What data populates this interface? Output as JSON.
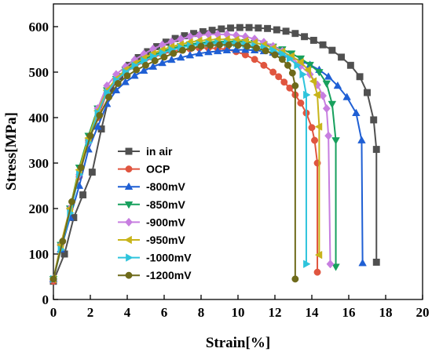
{
  "chart_data": {
    "type": "line",
    "xlabel": "Strain[%]",
    "ylabel": "Stress[MPa]",
    "xlim": [
      0,
      20
    ],
    "ylim": [
      0,
      650
    ],
    "xticks": [
      0,
      2,
      4,
      6,
      8,
      10,
      12,
      14,
      16,
      18,
      20
    ],
    "yticks": [
      0,
      100,
      200,
      300,
      400,
      500,
      600
    ],
    "grid": false,
    "legend_position": "left",
    "series": [
      {
        "name": "in air",
        "color": "#505050",
        "marker": "square",
        "x": [
          0,
          0.6,
          1.1,
          1.6,
          2.1,
          2.6,
          3.1,
          3.6,
          4.1,
          4.6,
          5.1,
          5.6,
          6.1,
          6.6,
          7.1,
          7.6,
          8.1,
          8.6,
          9.1,
          9.6,
          10.1,
          10.6,
          11.1,
          11.6,
          12.1,
          12.6,
          13.1,
          13.6,
          14.1,
          14.6,
          15.1,
          15.6,
          16.1,
          16.6,
          17.0,
          17.35,
          17.5,
          17.5
        ],
        "y": [
          40,
          100,
          180,
          230,
          280,
          375,
          460,
          490,
          515,
          532,
          545,
          556,
          566,
          574,
          580,
          585,
          589,
          592,
          595,
          597,
          598,
          598,
          597,
          596,
          593,
          590,
          585,
          578,
          570,
          560,
          548,
          533,
          515,
          490,
          455,
          395,
          330,
          82
        ]
      },
      {
        "name": "OCP",
        "color": "#e0553f",
        "marker": "circle",
        "x": [
          0,
          0.4,
          0.9,
          1.4,
          1.9,
          2.4,
          2.9,
          3.4,
          3.9,
          4.4,
          4.9,
          5.4,
          5.9,
          6.4,
          6.9,
          7.4,
          7.9,
          8.4,
          8.9,
          9.4,
          9.9,
          10.4,
          10.9,
          11.4,
          11.9,
          12.2,
          12.5,
          12.8,
          13.1,
          13.4,
          13.7,
          14.0,
          14.15,
          14.3,
          14.3
        ],
        "y": [
          40,
          120,
          200,
          270,
          350,
          400,
          455,
          480,
          500,
          512,
          523,
          532,
          540,
          545,
          549,
          551,
          553,
          553,
          552,
          550,
          545,
          538,
          528,
          515,
          500,
          490,
          478,
          465,
          450,
          432,
          410,
          378,
          350,
          300,
          60
        ]
      },
      {
        "name": "-800mV",
        "color": "#1f5fd4",
        "marker": "triangle-up",
        "x": [
          0,
          0.4,
          0.9,
          1.4,
          1.9,
          2.4,
          2.9,
          3.4,
          3.9,
          4.4,
          4.9,
          5.4,
          5.9,
          6.4,
          6.9,
          7.4,
          7.9,
          8.4,
          8.9,
          9.4,
          9.9,
          10.4,
          10.9,
          11.4,
          11.9,
          12.4,
          12.9,
          13.4,
          13.9,
          14.4,
          14.9,
          15.4,
          15.9,
          16.4,
          16.7,
          16.75
        ],
        "y": [
          45,
          110,
          180,
          250,
          330,
          380,
          430,
          460,
          478,
          492,
          503,
          512,
          520,
          527,
          532,
          537,
          541,
          544,
          546,
          548,
          549,
          549,
          548,
          546,
          543,
          538,
          532,
          525,
          516,
          505,
          490,
          470,
          445,
          410,
          350,
          80
        ]
      },
      {
        "name": "-850mV",
        "color": "#17a05d",
        "marker": "triangle-down",
        "x": [
          0,
          0.4,
          0.9,
          1.4,
          1.9,
          2.4,
          2.9,
          3.4,
          3.9,
          4.4,
          4.9,
          5.4,
          5.9,
          6.4,
          6.9,
          7.4,
          7.9,
          8.4,
          8.9,
          9.4,
          9.9,
          10.4,
          10.9,
          11.4,
          11.9,
          12.4,
          12.9,
          13.4,
          13.9,
          14.4,
          14.8,
          15.1,
          15.3,
          15.3
        ],
        "y": [
          45,
          120,
          200,
          290,
          360,
          420,
          460,
          485,
          505,
          518,
          528,
          537,
          545,
          552,
          557,
          561,
          564,
          566,
          567,
          567,
          567,
          566,
          564,
          561,
          556,
          550,
          541,
          530,
          516,
          500,
          475,
          430,
          350,
          72
        ]
      },
      {
        "name": "-900mV",
        "color": "#c77ee0",
        "marker": "diamond",
        "x": [
          0,
          0.4,
          0.9,
          1.4,
          1.9,
          2.4,
          2.9,
          3.4,
          3.9,
          4.4,
          4.9,
          5.4,
          5.9,
          6.4,
          6.9,
          7.4,
          7.9,
          8.4,
          8.9,
          9.4,
          9.9,
          10.4,
          10.9,
          11.4,
          11.9,
          12.4,
          12.9,
          13.4,
          13.9,
          14.3,
          14.6,
          14.8,
          14.9,
          15.0
        ],
        "y": [
          45,
          120,
          200,
          275,
          345,
          420,
          470,
          495,
          512,
          527,
          540,
          551,
          560,
          567,
          573,
          578,
          581,
          583,
          583,
          583,
          581,
          578,
          573,
          566,
          557,
          546,
          532,
          514,
          495,
          472,
          448,
          420,
          360,
          78
        ]
      },
      {
        "name": "-950mV",
        "color": "#c8b41a",
        "marker": "triangle-left",
        "x": [
          0,
          0.4,
          0.9,
          1.4,
          1.9,
          2.4,
          2.9,
          3.4,
          3.9,
          4.4,
          4.9,
          5.4,
          5.9,
          6.4,
          6.9,
          7.4,
          7.9,
          8.4,
          8.9,
          9.4,
          9.9,
          10.4,
          10.9,
          11.4,
          11.9,
          12.4,
          12.9,
          13.4,
          13.8,
          14.1,
          14.3,
          14.4,
          14.4
        ],
        "y": [
          45,
          120,
          200,
          285,
          355,
          415,
          460,
          485,
          505,
          519,
          531,
          541,
          549,
          556,
          561,
          566,
          569,
          571,
          572,
          572,
          571,
          569,
          565,
          560,
          553,
          545,
          535,
          522,
          505,
          480,
          450,
          380,
          98
        ]
      },
      {
        "name": "-1000mV",
        "color": "#2ec4dc",
        "marker": "triangle-right",
        "x": [
          0,
          0.4,
          0.9,
          1.4,
          1.9,
          2.4,
          2.9,
          3.4,
          3.9,
          4.4,
          4.9,
          5.4,
          5.9,
          6.4,
          6.9,
          7.4,
          7.9,
          8.4,
          8.9,
          9.4,
          9.9,
          10.4,
          10.9,
          11.4,
          11.9,
          12.4,
          12.8,
          13.2,
          13.5,
          13.7,
          13.7
        ],
        "y": [
          45,
          110,
          190,
          275,
          345,
          410,
          455,
          482,
          500,
          514,
          525,
          534,
          542,
          549,
          554,
          558,
          561,
          563,
          564,
          564,
          563,
          561,
          558,
          554,
          548,
          540,
          530,
          515,
          495,
          450,
          78
        ]
      },
      {
        "name": "-1200mV",
        "color": "#6e6a1a",
        "marker": "circle",
        "x": [
          0,
          0.5,
          1.0,
          1.5,
          2.0,
          2.5,
          3.0,
          3.5,
          4.0,
          4.5,
          5.0,
          5.5,
          6.0,
          6.5,
          7.0,
          7.5,
          8.0,
          8.5,
          9.0,
          9.5,
          10.0,
          10.5,
          11.0,
          11.5,
          12.0,
          12.4,
          12.7,
          12.95,
          13.1,
          13.1
        ],
        "y": [
          45,
          128,
          215,
          290,
          360,
          405,
          445,
          475,
          492,
          505,
          515,
          525,
          533,
          541,
          548,
          553,
          557,
          559,
          560,
          560,
          559,
          557,
          553,
          547,
          538,
          528,
          515,
          498,
          470,
          45
        ]
      }
    ]
  }
}
